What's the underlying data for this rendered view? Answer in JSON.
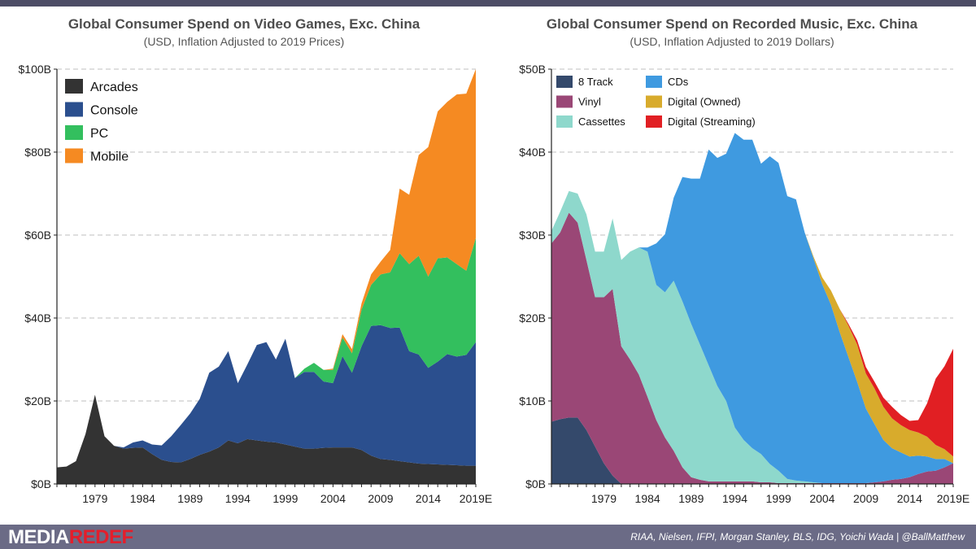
{
  "footer": {
    "logo_part1": "MEDIA",
    "logo_part2": "REDEF",
    "sources": "RIAA, Nielsen, IFPI, Morgan Stanley, BLS, IDG, Yoichi Wada | @BallMatthew"
  },
  "chart_data": [
    {
      "id": "games",
      "type": "area",
      "stacked": true,
      "title": "Global Consumer Spend on Video Games, Exc. China",
      "subtitle": "(USD, Inflation Adjusted to 2019 Prices)",
      "xlabel": "",
      "ylabel": "",
      "x": [
        1975,
        1976,
        1977,
        1978,
        1979,
        1980,
        1981,
        1982,
        1983,
        1984,
        1985,
        1986,
        1987,
        1988,
        1989,
        1990,
        1991,
        1992,
        1993,
        1994,
        1995,
        1996,
        1997,
        1998,
        1999,
        2000,
        2001,
        2002,
        2003,
        2004,
        2005,
        2006,
        2007,
        2008,
        2009,
        2010,
        2011,
        2012,
        2013,
        2014,
        2015,
        2016,
        2017,
        2018,
        2019
      ],
      "xlim": [
        1975,
        2019
      ],
      "ylim": [
        0,
        100
      ],
      "y_ticks": [
        0,
        20,
        40,
        60,
        80,
        100
      ],
      "y_tick_labels": [
        "$0B",
        "$20B",
        "$40B",
        "$60B",
        "$80B",
        "$100B"
      ],
      "x_ticks": [
        1979,
        1984,
        1989,
        1994,
        1999,
        2004,
        2009,
        2014,
        2019
      ],
      "x_tick_labels": [
        "1979",
        "1984",
        "1989",
        "1994",
        "1999",
        "2004",
        "2009",
        "2014",
        "2019E"
      ],
      "legend_position": "top-left",
      "legend_font_size": 16,
      "legend_columns": 1,
      "series": [
        {
          "name": "Arcades",
          "color": "#333333",
          "values": [
            4,
            4.2,
            5.5,
            12,
            21.5,
            11.5,
            9.2,
            8.5,
            8.7,
            8.8,
            7.2,
            5.8,
            5.3,
            5.2,
            6,
            7,
            7.8,
            8.8,
            10.5,
            9.8,
            10.8,
            10.5,
            10.2,
            10,
            9.5,
            9,
            8.5,
            8.5,
            8.7,
            8.8,
            8.8,
            8.8,
            8.2,
            6.8,
            6,
            5.8,
            5.5,
            5.2,
            4.9,
            4.8,
            4.7,
            4.6,
            4.5,
            4.4,
            4.4
          ]
        },
        {
          "name": "Console",
          "color": "#2b4f8e",
          "values": [
            0,
            0,
            0,
            0,
            0,
            0,
            0,
            0.3,
            1.3,
            1.7,
            2.3,
            3.5,
            6.2,
            9,
            11,
            13.5,
            19,
            19.5,
            21.5,
            14.5,
            18,
            23,
            24,
            20,
            25.5,
            16.5,
            18.5,
            18.5,
            16,
            15.5,
            22,
            18,
            25,
            31.3,
            32.3,
            31.8,
            32.2,
            26.8,
            26.3,
            23.2,
            24.8,
            26.7,
            26.2,
            26.7,
            29.8
          ]
        },
        {
          "name": "PC",
          "color": "#33bf5e",
          "values": [
            0,
            0,
            0,
            0,
            0,
            0,
            0,
            0,
            0,
            0,
            0,
            0,
            0,
            0,
            0,
            0,
            0,
            0,
            0,
            0,
            0,
            0,
            0,
            0,
            0,
            0,
            0.8,
            2.2,
            2.8,
            3.2,
            4.5,
            4.7,
            8.8,
            9.9,
            12.2,
            13.4,
            17.9,
            21,
            23.8,
            22,
            24.9,
            23.3,
            22.3,
            20.3,
            25.1
          ]
        },
        {
          "name": "Mobile",
          "color": "#f58a22",
          "values": [
            0,
            0,
            0,
            0,
            0,
            0,
            0,
            0,
            0,
            0,
            0,
            0,
            0,
            0,
            0,
            0,
            0,
            0,
            0,
            0,
            0,
            0,
            0,
            0,
            0,
            0,
            0,
            0,
            0,
            0.3,
            0.8,
            1,
            1.5,
            2.5,
            3.1,
            5.4,
            15.6,
            16.7,
            24.3,
            31.2,
            35.4,
            37.5,
            40.9,
            42.7,
            40.7
          ]
        }
      ]
    },
    {
      "id": "music",
      "type": "area",
      "stacked": true,
      "title": "Global Consumer Spend on Recorded Music, Exc. China",
      "subtitle": "(USD, Inflation Adjusted to 2019 Dollars)",
      "xlabel": "",
      "ylabel": "",
      "x": [
        1973,
        1974,
        1975,
        1976,
        1977,
        1978,
        1979,
        1980,
        1981,
        1982,
        1983,
        1984,
        1985,
        1986,
        1987,
        1988,
        1989,
        1990,
        1991,
        1992,
        1993,
        1994,
        1995,
        1996,
        1997,
        1998,
        1999,
        2000,
        2001,
        2002,
        2003,
        2004,
        2005,
        2006,
        2007,
        2008,
        2009,
        2010,
        2011,
        2012,
        2013,
        2014,
        2015,
        2016,
        2017,
        2018,
        2019
      ],
      "xlim": [
        1973,
        2019
      ],
      "ylim": [
        0,
        50
      ],
      "y_ticks": [
        0,
        10,
        20,
        30,
        40,
        50
      ],
      "y_tick_labels": [
        "$0B",
        "$10B",
        "$20B",
        "$30B",
        "$40B",
        "$50B"
      ],
      "x_ticks": [
        1979,
        1984,
        1989,
        1994,
        1999,
        2004,
        2009,
        2014,
        2019
      ],
      "x_tick_labels": [
        "1979",
        "1984",
        "1989",
        "1994",
        "1999",
        "2004",
        "2009",
        "2014",
        "2019E"
      ],
      "legend_position": "top-left",
      "legend_font_size": 13,
      "legend_columns": 2,
      "series": [
        {
          "name": "8 Track",
          "color": "#34496b",
          "values": [
            7.5,
            7.8,
            8,
            8,
            6.5,
            4.5,
            2.5,
            1,
            0,
            0,
            0,
            0,
            0,
            0,
            0,
            0,
            0,
            0,
            0,
            0,
            0,
            0,
            0,
            0,
            0,
            0,
            0,
            0,
            0,
            0,
            0,
            0,
            0,
            0,
            0,
            0,
            0,
            0,
            0,
            0,
            0,
            0,
            0,
            0,
            0,
            0,
            0
          ]
        },
        {
          "name": "Vinyl",
          "color": "#9a4776",
          "values": [
            21.5,
            22.5,
            24.7,
            23.5,
            20.5,
            18,
            20,
            22.5,
            16.6,
            15,
            13.2,
            10.5,
            7.7,
            5.6,
            4,
            2,
            0.8,
            0.5,
            0.3,
            0.3,
            0.3,
            0.3,
            0.3,
            0.3,
            0.2,
            0.2,
            0.1,
            0.1,
            0.1,
            0.1,
            0.1,
            0.1,
            0.1,
            0.1,
            0.1,
            0.1,
            0.1,
            0.2,
            0.3,
            0.5,
            0.6,
            0.8,
            1.2,
            1.5,
            1.6,
            2,
            2.5
          ]
        },
        {
          "name": "Cassettes",
          "color": "#8ed8cc",
          "values": [
            1.5,
            2.5,
            2.6,
            3.5,
            5.5,
            5.5,
            5.5,
            8.5,
            10.4,
            13,
            15.3,
            17.5,
            16.3,
            17.5,
            20.5,
            20,
            18.5,
            16.3,
            14,
            11.5,
            9.7,
            6.5,
            5,
            4,
            3.4,
            2.2,
            1.5,
            0.5,
            0.3,
            0.2,
            0.1,
            0,
            0,
            0,
            0,
            0,
            0,
            0,
            0,
            0,
            0,
            0,
            0,
            0,
            0,
            0,
            0
          ]
        },
        {
          "name": "CDs",
          "color": "#3f9ae0",
          "values": [
            0,
            0,
            0,
            0,
            0,
            0,
            0,
            0,
            0,
            0,
            0,
            0.5,
            5,
            7,
            10,
            15,
            17.5,
            20,
            26,
            27.5,
            29.8,
            35.5,
            36.2,
            37.2,
            35,
            37.1,
            37.1,
            34.1,
            33.9,
            30,
            27,
            24,
            21.5,
            18.2,
            15.2,
            12.2,
            9,
            7,
            5,
            3.8,
            3.2,
            2.5,
            2.2,
            1.8,
            1.4,
            1,
            0
          ]
        },
        {
          "name": "Digital (Owned)",
          "color": "#d8ab2c",
          "values": [
            0,
            0,
            0,
            0,
            0,
            0,
            0,
            0,
            0,
            0,
            0,
            0,
            0,
            0,
            0,
            0,
            0,
            0,
            0,
            0,
            0,
            0,
            0,
            0,
            0,
            0,
            0,
            0,
            0,
            0,
            0.2,
            0.8,
            1.7,
            2.8,
            3.8,
            4.5,
            4.2,
            4.3,
            4,
            3.6,
            3.3,
            3.2,
            2.8,
            2.4,
            1.7,
            1.2,
            0.8
          ]
        },
        {
          "name": "Digital (Streaming)",
          "color": "#e11f23",
          "values": [
            0,
            0,
            0,
            0,
            0,
            0,
            0,
            0,
            0,
            0,
            0,
            0,
            0,
            0,
            0,
            0,
            0,
            0,
            0,
            0,
            0,
            0,
            0,
            0,
            0,
            0,
            0,
            0,
            0,
            0,
            0,
            0,
            0,
            0,
            0.2,
            0.5,
            0.8,
            0.8,
            1.1,
            1.4,
            1.2,
            1.1,
            1.5,
            4,
            8,
            10,
            13
          ]
        }
      ]
    }
  ]
}
